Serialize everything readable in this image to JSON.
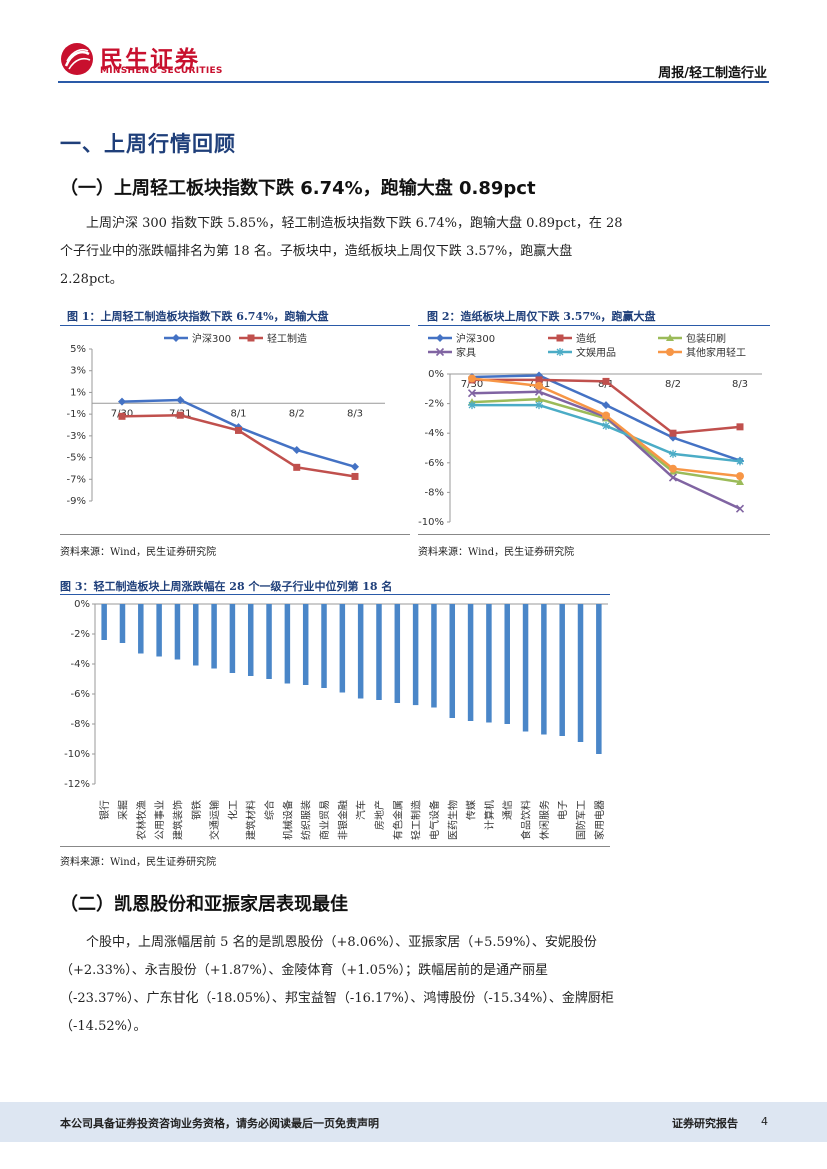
{
  "header": {
    "logo_cn": "民生证券",
    "logo_en": "MINSHENG SECURITIES",
    "report_type": "周报/轻工制造行业"
  },
  "section1": {
    "title": "一、上周行情回顾",
    "sub1_title": "（一）上周轻工板块指数下跌 6.74%，跑输大盘 0.89pct",
    "para1": "上周沪深 300 指数下跌 5.85%，轻工制造板块指数下跌 6.74%，跑输大盘 0.89pct，在 28 个子行业中的涨跌幅排名为第 18 名。子板块中，造纸板块上周仅下跌 3.57%，跑赢大盘 2.28pct。",
    "sub2_title": "（二）凯恩股份和亚振家居表现最佳",
    "para2": "个股中，上周涨幅居前 5 名的是凯恩股份（+8.06%）、亚振家居（+5.59%）、安妮股份（+2.33%）、永吉股份（+1.87%）、金陵体育（+1.05%）；跌幅居前的是通产丽星（-23.37%）、广东甘化（-18.05%）、邦宝益智（-16.17%）、鸿博股份（-15.34%）、金牌厨柜（-14.52%）。"
  },
  "figures": {
    "fig1_title": "图 1：上周轻工制造板块指数下跌 6.74%，跑输大盘",
    "fig2_title": "图 2：造纸板块上周仅下跌 3.57%，跑赢大盘",
    "fig3_title": "图 3：轻工制造板块上周涨跌幅在 28 个一级子行业中位列第 18 名",
    "source": "资料来源：Wind，民生证券研究院"
  },
  "footer": {
    "disclaimer": "本公司具备证券投资咨询业务资格，请务必阅读最后一页免责声明",
    "label": "证券研究报告",
    "page": "4"
  },
  "colors": {
    "blue": "#4472c4",
    "red": "#c0504d",
    "green": "#9bbb59",
    "purple": "#8064a2",
    "teal": "#4bacc6",
    "orange": "#f79646",
    "bar": "#4a86c8"
  },
  "chart_data": [
    {
      "type": "line",
      "title": "上周轻工制造板块指数下跌 6.74%，跑输大盘",
      "categories": [
        "7/30",
        "7/31",
        "8/1",
        "8/2",
        "8/3"
      ],
      "ylim": [
        -9,
        5
      ],
      "yticks": [
        "5%",
        "3%",
        "1%",
        "-1%",
        "-3%",
        "-5%",
        "-7%",
        "-9%"
      ],
      "series": [
        {
          "name": "沪深300",
          "values": [
            0.15,
            0.3,
            -2.2,
            -4.3,
            -5.85
          ]
        },
        {
          "name": "轻工制造",
          "values": [
            -1.2,
            -1.1,
            -2.5,
            -5.9,
            -6.74
          ]
        }
      ]
    },
    {
      "type": "line",
      "title": "造纸板块上周仅下跌 3.57%，跑赢大盘",
      "categories": [
        "7/30",
        "7/31",
        "8/1",
        "8/2",
        "8/3"
      ],
      "ylim": [
        -10,
        0
      ],
      "yticks": [
        "0%",
        "-2%",
        "-4%",
        "-6%",
        "-8%",
        "-10%"
      ],
      "series": [
        {
          "name": "沪深300",
          "values": [
            -0.2,
            -0.1,
            -2.1,
            -4.3,
            -5.85
          ]
        },
        {
          "name": "造纸",
          "values": [
            -0.4,
            -0.4,
            -0.5,
            -4.0,
            -3.57
          ]
        },
        {
          "name": "包装印刷",
          "values": [
            -1.9,
            -1.7,
            -3.0,
            -6.6,
            -7.3
          ]
        },
        {
          "name": "家具",
          "values": [
            -1.3,
            -1.2,
            -2.9,
            -7.0,
            -9.1
          ]
        },
        {
          "name": "文娱用品",
          "values": [
            -2.1,
            -2.1,
            -3.5,
            -5.4,
            -5.9
          ]
        },
        {
          "name": "其他家用轻工",
          "values": [
            -0.3,
            -0.8,
            -2.8,
            -6.4,
            -6.9
          ]
        }
      ]
    },
    {
      "type": "bar",
      "title": "轻工制造板块上周涨跌幅在 28 个一级子行业中位列第 18 名",
      "categories": [
        "银行",
        "采掘",
        "农林牧渔",
        "公用事业",
        "建筑装饰",
        "钢铁",
        "交通运输",
        "化工",
        "建筑材料",
        "综合",
        "机械设备",
        "纺织服装",
        "商业贸易",
        "非银金融",
        "汽车",
        "房地产",
        "有色金属",
        "轻工制造",
        "电气设备",
        "医药生物",
        "传媒",
        "计算机",
        "通信",
        "食品饮料",
        "休闲服务",
        "电子",
        "国防军工",
        "家用电器"
      ],
      "values": [
        -2.4,
        -2.6,
        -3.3,
        -3.5,
        -3.7,
        -4.1,
        -4.3,
        -4.6,
        -4.8,
        -5.0,
        -5.3,
        -5.4,
        -5.6,
        -5.9,
        -6.3,
        -6.4,
        -6.6,
        -6.74,
        -6.9,
        -7.6,
        -7.8,
        -7.9,
        -8.0,
        -8.5,
        -8.7,
        -8.8,
        -9.2,
        -10.0
      ],
      "ylim": [
        -12,
        0
      ],
      "yticks": [
        "0%",
        "-2%",
        "-4%",
        "-6%",
        "-8%",
        "-10%",
        "-12%"
      ]
    }
  ]
}
